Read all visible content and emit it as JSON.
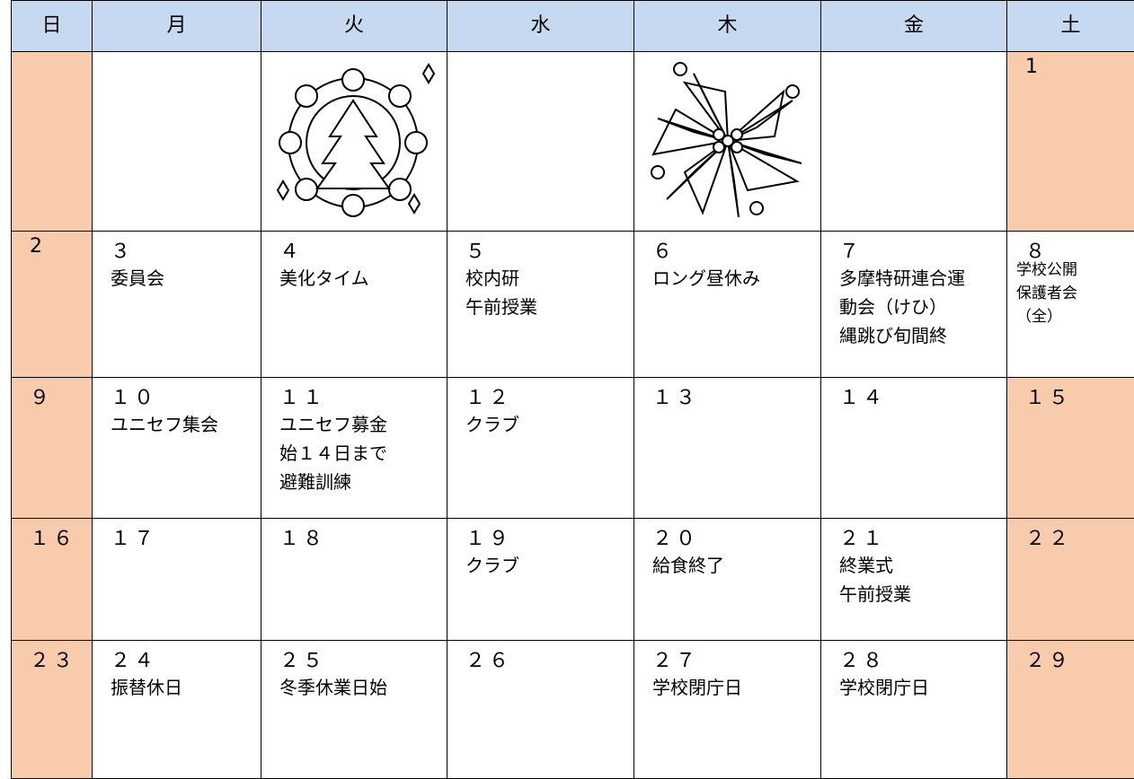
{
  "header": {
    "days": [
      "日",
      "月",
      "火",
      "水",
      "木",
      "金",
      "土"
    ]
  },
  "weeks": [
    [
      null,
      null,
      null,
      null,
      null,
      null,
      {
        "day": "1"
      }
    ],
    [
      {
        "day": "2"
      },
      {
        "day": "３",
        "events": [
          "委員会"
        ]
      },
      {
        "day": "４",
        "events": [
          "美化タイム"
        ]
      },
      {
        "day": "５",
        "events": [
          "校内研",
          "午前授業"
        ]
      },
      {
        "day": "６",
        "events": [
          "ロング昼休み"
        ]
      },
      {
        "day": "７",
        "events": [
          "多摩特研連合運",
          "動会（けひ）",
          "縄跳び旬間終"
        ]
      },
      {
        "day": "８",
        "events": [
          "学校公開",
          "保護者会",
          "（全）"
        ]
      }
    ],
    [
      {
        "day": "９"
      },
      {
        "day": "１０",
        "events": [
          "ユニセフ集会"
        ]
      },
      {
        "day": "１１",
        "events": [
          "ユニセフ募金",
          "始１４日まで",
          "避難訓練"
        ]
      },
      {
        "day": "１２",
        "events": [
          "クラブ"
        ]
      },
      {
        "day": "１３"
      },
      {
        "day": "１４"
      },
      {
        "day": "１５"
      }
    ],
    [
      {
        "day": "１６"
      },
      {
        "day": "１７"
      },
      {
        "day": "１８"
      },
      {
        "day": "１９",
        "events": [
          "クラブ"
        ]
      },
      {
        "day": "２０",
        "events": [
          "給食終了"
        ]
      },
      {
        "day": "２１",
        "events": [
          "終業式",
          "午前授業"
        ]
      },
      {
        "day": "２２"
      }
    ],
    [
      {
        "day": "２３"
      },
      {
        "day": "２４",
        "events": [
          "振替休日"
        ]
      },
      {
        "day": "２５",
        "events": [
          "冬季休業日始"
        ]
      },
      {
        "day": "２６"
      },
      {
        "day": "２７",
        "events": [
          "学校閉庁日"
        ]
      },
      {
        "day": "２８",
        "events": [
          "学校閉庁日"
        ]
      },
      {
        "day": "２９"
      }
    ]
  ]
}
